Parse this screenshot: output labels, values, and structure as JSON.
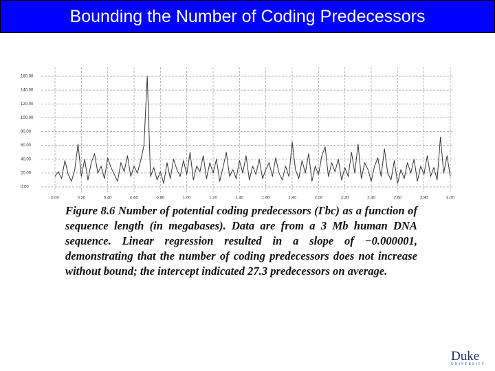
{
  "header": {
    "title": "Bounding the Number of Coding Predecessors"
  },
  "chart_data": {
    "type": "line",
    "x": [
      0,
      0.025,
      0.05,
      0.075,
      0.1,
      0.125,
      0.15,
      0.175,
      0.2,
      0.225,
      0.25,
      0.275,
      0.3,
      0.325,
      0.35,
      0.375,
      0.4,
      0.425,
      0.45,
      0.475,
      0.5,
      0.525,
      0.55,
      0.575,
      0.6,
      0.625,
      0.65,
      0.675,
      0.7,
      0.725,
      0.75,
      0.775,
      0.8,
      0.825,
      0.85,
      0.875,
      0.9,
      0.925,
      0.95,
      0.975,
      1,
      1.025,
      1.05,
      1.075,
      1.1,
      1.125,
      1.15,
      1.175,
      1.2,
      1.225,
      1.25,
      1.275,
      1.3,
      1.325,
      1.35,
      1.375,
      1.4,
      1.425,
      1.45,
      1.475,
      1.5,
      1.525,
      1.55,
      1.575,
      1.6,
      1.625,
      1.65,
      1.675,
      1.7,
      1.725,
      1.75,
      1.775,
      1.8,
      1.825,
      1.85,
      1.875,
      1.9,
      1.925,
      1.95,
      1.975,
      2,
      2.025,
      2.05,
      2.075,
      2.1,
      2.125,
      2.15,
      2.175,
      2.2,
      2.225,
      2.25,
      2.275,
      2.3,
      2.325,
      2.35,
      2.375,
      2.4,
      2.425,
      2.45,
      2.475,
      2.5,
      2.525,
      2.55,
      2.575,
      2.6,
      2.625,
      2.65,
      2.675,
      2.7,
      2.725,
      2.75,
      2.775,
      2.8,
      2.825,
      2.85,
      2.875,
      2.9,
      2.925,
      2.95,
      2.975,
      3
    ],
    "values": [
      15,
      22,
      12,
      38,
      18,
      8,
      25,
      62,
      15,
      40,
      10,
      35,
      48,
      20,
      30,
      12,
      42,
      28,
      18,
      8,
      35,
      22,
      45,
      15,
      30,
      20,
      38,
      60,
      160,
      15,
      28,
      10,
      22,
      5,
      35,
      12,
      40,
      25,
      15,
      38,
      18,
      50,
      10,
      30,
      22,
      45,
      12,
      35,
      20,
      40,
      8,
      28,
      50,
      15,
      25,
      12,
      38,
      20,
      45,
      10,
      30,
      18,
      40,
      12,
      25,
      35,
      15,
      42,
      20,
      10,
      30,
      15,
      65,
      25,
      12,
      38,
      20,
      48,
      8,
      30,
      18,
      45,
      58,
      15,
      35,
      22,
      40,
      10,
      28,
      15,
      50,
      20,
      62,
      12,
      35,
      25,
      8,
      30,
      42,
      15,
      55,
      20,
      10,
      38,
      5,
      25,
      12,
      35,
      20,
      40,
      8,
      30,
      18,
      45,
      15,
      28,
      10,
      72,
      20,
      45,
      15
    ],
    "color": "#333333",
    "xlim": [
      0,
      3
    ],
    "ylim": [
      0,
      160
    ],
    "xticks": [
      {
        "value": 0,
        "label": "0.00"
      },
      {
        "value": 0.2,
        "label": "0.20"
      },
      {
        "value": 0.4,
        "label": "0.40"
      },
      {
        "value": 0.6,
        "label": "0.60"
      },
      {
        "value": 0.8,
        "label": "0.80"
      },
      {
        "value": 1,
        "label": "1.00"
      },
      {
        "value": 1.2,
        "label": "1.20"
      },
      {
        "value": 1.4,
        "label": "1.40"
      },
      {
        "value": 1.6,
        "label": "1.60"
      },
      {
        "value": 1.8,
        "label": "1.80"
      },
      {
        "value": 2,
        "label": "2.00"
      },
      {
        "value": 2.2,
        "label": "2.20"
      },
      {
        "value": 2.4,
        "label": "2.40"
      },
      {
        "value": 2.6,
        "label": "2.60"
      },
      {
        "value": 2.8,
        "label": "2.80"
      },
      {
        "value": 3,
        "label": "3.00"
      }
    ],
    "yticks": [
      {
        "value": 0,
        "label": "0.00"
      },
      {
        "value": 20,
        "label": "20.00"
      },
      {
        "value": 40,
        "label": "40.00"
      },
      {
        "value": 60,
        "label": "60.00"
      },
      {
        "value": 80,
        "label": "80.00"
      },
      {
        "value": 100,
        "label": "100.00"
      },
      {
        "value": 120,
        "label": "120.00"
      },
      {
        "value": 140,
        "label": "140.00"
      },
      {
        "value": 160,
        "label": "160.00"
      }
    ],
    "grid": true,
    "caption": "Figure 8.6 Number of potential coding predecessors (Γbc) as a function of sequence length (in megabases). Data are from a 3 Mb human DNA sequence. Linear regression resulted in a slope of −0.000001, demonstrating that the number of coding predecessors does not increase without bound; the intercept indicated 27.3 predecessors on average."
  },
  "logo": {
    "name": "Duke",
    "sub": "UNIVERSITY"
  }
}
